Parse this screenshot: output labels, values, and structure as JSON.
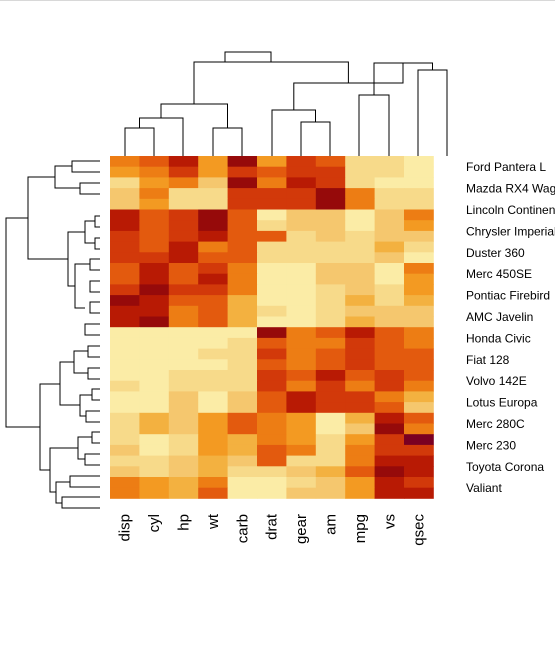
{
  "chart_data": {
    "type": "heatmap",
    "title": "",
    "xlabel": "",
    "ylabel": "",
    "columns": [
      "disp",
      "cyl",
      "hp",
      "wt",
      "carb",
      "drat",
      "gear",
      "am",
      "mpg",
      "vs",
      "qsec"
    ],
    "rows": [
      {
        "label": "",
        "values": [
          0.55,
          0.6,
          0.85,
          0.45,
          0.95,
          0.45,
          0.7,
          0.65,
          0.15,
          0.15,
          0.05
        ]
      },
      {
        "label": "Ford Pantera L",
        "values": [
          0.45,
          0.55,
          0.75,
          0.45,
          0.7,
          0.6,
          0.75,
          0.7,
          0.15,
          0.15,
          0.1
        ]
      },
      {
        "label": "",
        "values": [
          0.2,
          0.45,
          0.55,
          0.25,
          0.9,
          0.55,
          0.85,
          0.7,
          0.2,
          0.1,
          0.1
        ]
      },
      {
        "label": "Mazda RX4 Wag",
        "values": [
          0.25,
          0.5,
          0.2,
          0.2,
          0.7,
          0.7,
          0.7,
          0.95,
          0.55,
          0.2,
          0.15
        ]
      },
      {
        "label": "",
        "values": [
          0.25,
          0.45,
          0.2,
          0.2,
          0.7,
          0.7,
          0.7,
          0.95,
          0.55,
          0.15,
          0.15
        ]
      },
      {
        "label": "Lincoln Continental",
        "values": [
          0.85,
          0.65,
          0.7,
          0.9,
          0.6,
          0.1,
          0.25,
          0.25,
          0.05,
          0.25,
          0.5
        ]
      },
      {
        "label": "",
        "values": [
          0.8,
          0.65,
          0.7,
          0.95,
          0.6,
          0.15,
          0.25,
          0.25,
          0.1,
          0.25,
          0.45
        ]
      },
      {
        "label": "Chrysler Imperial",
        "values": [
          0.75,
          0.65,
          0.75,
          0.8,
          0.6,
          0.6,
          0.15,
          0.25,
          0.15,
          0.25,
          0.3
        ]
      },
      {
        "label": "",
        "values": [
          0.75,
          0.65,
          0.8,
          0.55,
          0.65,
          0.2,
          0.2,
          0.2,
          0.2,
          0.35,
          0.15
        ]
      },
      {
        "label": "Duster 360",
        "values": [
          0.75,
          0.75,
          0.8,
          0.6,
          0.6,
          0.15,
          0.2,
          0.2,
          0.2,
          0.25,
          0.1
        ]
      },
      {
        "label": "",
        "values": [
          0.65,
          0.8,
          0.65,
          0.75,
          0.55,
          0.1,
          0.1,
          0.25,
          0.25,
          0.1,
          0.55
        ]
      },
      {
        "label": "Merc 450SE",
        "values": [
          0.65,
          0.85,
          0.65,
          0.8,
          0.55,
          0.1,
          0.1,
          0.25,
          0.25,
          0.1,
          0.45
        ]
      },
      {
        "label": "",
        "values": [
          0.7,
          0.9,
          0.75,
          0.7,
          0.5,
          0.1,
          0.1,
          0.15,
          0.3,
          0.15,
          0.45
        ]
      },
      {
        "label": "Pontiac Firebird",
        "values": [
          0.9,
          0.8,
          0.65,
          0.65,
          0.4,
          0.1,
          0.1,
          0.15,
          0.4,
          0.2,
          0.35
        ]
      },
      {
        "label": "",
        "values": [
          0.85,
          0.85,
          0.55,
          0.65,
          0.4,
          0.15,
          0.1,
          0.2,
          0.3,
          0.25,
          0.3
        ]
      },
      {
        "label": "AMC Javelin",
        "values": [
          0.85,
          0.9,
          0.55,
          0.65,
          0.4,
          0.05,
          0.1,
          0.2,
          0.35,
          0.3,
          0.3
        ]
      },
      {
        "label": "",
        "values": [
          0.1,
          0.1,
          0.1,
          0.1,
          0.1,
          0.95,
          0.55,
          0.6,
          0.8,
          0.65,
          0.5
        ]
      },
      {
        "label": "Honda Civic",
        "values": [
          0.1,
          0.1,
          0.1,
          0.1,
          0.15,
          0.65,
          0.55,
          0.55,
          0.75,
          0.65,
          0.55
        ]
      },
      {
        "label": "",
        "values": [
          0.1,
          0.1,
          0.1,
          0.15,
          0.15,
          0.7,
          0.55,
          0.6,
          0.7,
          0.65,
          0.6
        ]
      },
      {
        "label": "Fiat 128",
        "values": [
          0.1,
          0.1,
          0.1,
          0.1,
          0.15,
          0.65,
          0.55,
          0.65,
          0.75,
          0.65,
          0.6
        ]
      },
      {
        "label": "",
        "values": [
          0.1,
          0.05,
          0.15,
          0.15,
          0.15,
          0.75,
          0.6,
          0.8,
          0.6,
          0.7,
          0.6
        ]
      },
      {
        "label": "Volvo 142E",
        "values": [
          0.15,
          0.1,
          0.2,
          0.15,
          0.2,
          0.7,
          0.55,
          0.75,
          0.55,
          0.7,
          0.55
        ]
      },
      {
        "label": "",
        "values": [
          0.1,
          0.1,
          0.3,
          0.05,
          0.25,
          0.6,
          0.8,
          0.75,
          0.7,
          0.55,
          0.4
        ]
      },
      {
        "label": "Lotus Europa",
        "values": [
          0.1,
          0.1,
          0.3,
          0.05,
          0.3,
          0.6,
          0.85,
          0.7,
          0.75,
          0.6,
          0.3
        ]
      },
      {
        "label": "",
        "values": [
          0.2,
          0.35,
          0.25,
          0.45,
          0.6,
          0.55,
          0.45,
          0.05,
          0.35,
          0.85,
          0.6
        ]
      },
      {
        "label": "Merc 280C",
        "values": [
          0.2,
          0.35,
          0.25,
          0.45,
          0.65,
          0.55,
          0.45,
          0.05,
          0.3,
          0.9,
          0.55
        ]
      },
      {
        "label": "",
        "values": [
          0.2,
          0.05,
          0.2,
          0.45,
          0.4,
          0.55,
          0.45,
          0.15,
          0.45,
          0.7,
          0.99
        ]
      },
      {
        "label": "Merc 230",
        "values": [
          0.25,
          0.05,
          0.15,
          0.45,
          0.35,
          0.6,
          0.55,
          0.2,
          0.55,
          0.7,
          0.75
        ]
      },
      {
        "label": "",
        "values": [
          0.2,
          0.15,
          0.25,
          0.4,
          0.25,
          0.6,
          0.2,
          0.2,
          0.55,
          0.85,
          0.85
        ]
      },
      {
        "label": "Toyota Corona",
        "values": [
          0.25,
          0.15,
          0.25,
          0.4,
          0.15,
          0.15,
          0.3,
          0.35,
          0.6,
          0.9,
          0.8
        ]
      },
      {
        "label": "",
        "values": [
          0.55,
          0.45,
          0.35,
          0.5,
          0.1,
          0.1,
          0.2,
          0.25,
          0.45,
          0.85,
          0.75
        ]
      },
      {
        "label": "Valiant",
        "values": [
          0.55,
          0.45,
          0.35,
          0.65,
          0.1,
          0.1,
          0.25,
          0.25,
          0.45,
          0.85,
          0.8
        ]
      }
    ],
    "palette": [
      "#FFFFCC",
      "#FBECA6",
      "#F7DA8A",
      "#F5C76E",
      "#F3B140",
      "#F39A22",
      "#ED7D14",
      "#E35A0E",
      "#D2390A",
      "#B81A04",
      "#960A0A",
      "#7A0022"
    ],
    "grid": false,
    "legend": "none"
  }
}
